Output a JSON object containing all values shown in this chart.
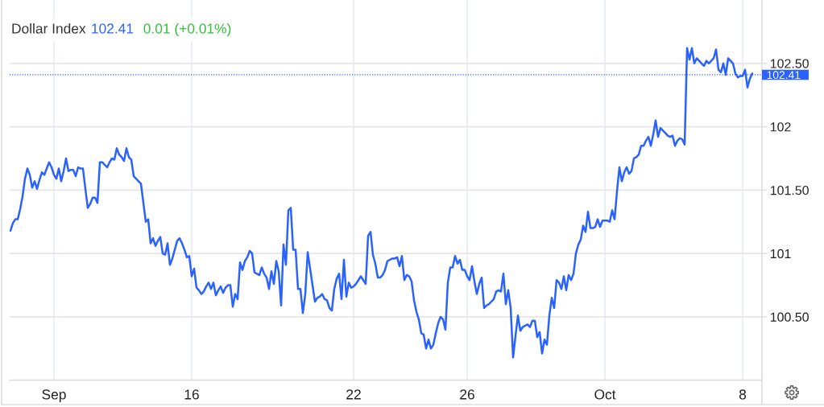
{
  "chart_data": {
    "type": "line",
    "title": "Dollar Index",
    "annotations": [
      "102.41",
      "0.01 (+0.01%)"
    ],
    "categories": [
      null,
      null,
      null,
      null,
      null,
      null,
      null,
      null,
      null,
      null,
      null,
      null,
      null,
      null,
      null,
      null,
      null,
      null,
      "Sep",
      null,
      null,
      null,
      null,
      null,
      null,
      null,
      null,
      null,
      null,
      null,
      null,
      null,
      null,
      null,
      null,
      null,
      null,
      null,
      null,
      null,
      null,
      null,
      null,
      null,
      null,
      null,
      null,
      null,
      null,
      null,
      null,
      null,
      null,
      null,
      null,
      null,
      null,
      null,
      null,
      null,
      null,
      null,
      null,
      null,
      null,
      null,
      null,
      null,
      null,
      null,
      null,
      null,
      null,
      null,
      null,
      "16",
      null,
      null,
      null,
      null,
      null,
      null,
      null,
      null,
      null,
      null,
      null,
      null,
      null,
      null,
      null,
      null,
      null,
      null,
      null,
      null,
      null,
      null,
      null,
      null,
      null,
      null,
      null,
      null,
      null,
      null,
      null,
      null,
      null,
      null,
      null,
      null,
      null,
      null,
      null,
      null,
      null,
      null,
      null,
      null,
      null,
      null,
      null,
      null,
      null,
      null,
      null,
      null,
      null,
      null,
      null,
      null,
      null,
      null,
      null,
      null,
      null,
      null,
      null,
      null,
      null,
      null,
      "22",
      null,
      null,
      null,
      null,
      null,
      null,
      null,
      null,
      null,
      null,
      null,
      null,
      null,
      null,
      null,
      null,
      null,
      null,
      null,
      null,
      null,
      null,
      null,
      null,
      null,
      null,
      null,
      null,
      null,
      null,
      null,
      null,
      null,
      null,
      null,
      null,
      null,
      null,
      null,
      null,
      null,
      null,
      null,
      null,
      null,
      null,
      "26",
      null,
      null,
      null,
      null,
      null,
      null,
      null,
      null,
      null,
      null,
      null,
      null,
      null,
      null,
      null,
      null,
      null,
      null,
      null,
      null,
      null,
      null,
      null,
      null,
      null,
      null,
      null,
      null,
      null,
      null,
      null,
      null,
      null,
      null,
      null,
      null,
      null,
      null,
      null,
      null,
      null,
      null,
      null,
      null,
      null,
      null,
      null,
      null,
      null,
      null,
      null,
      null,
      null,
      null,
      null,
      null,
      "Oct",
      null,
      null,
      null,
      null,
      null,
      null,
      null,
      null,
      null,
      null,
      null,
      null,
      null,
      null,
      null,
      null,
      null,
      null,
      null,
      null,
      null,
      null,
      null,
      null,
      null,
      null,
      null,
      null,
      null,
      null,
      null,
      null,
      null,
      null,
      null,
      null,
      null,
      null,
      null,
      null,
      null,
      null,
      null,
      null,
      null,
      null,
      null,
      null,
      null,
      null,
      null,
      null,
      null,
      null,
      null,
      null,
      "8",
      null,
      null,
      null,
      null
    ],
    "series": [
      {
        "color": "#2962ff",
        "values": [
          101.18,
          101.24,
          101.27,
          101.27,
          101.35,
          101.45,
          101.59,
          101.67,
          101.62,
          101.52,
          101.57,
          101.51,
          101.58,
          101.64,
          101.62,
          101.67,
          101.72,
          101.68,
          101.62,
          101.59,
          101.67,
          101.57,
          101.65,
          101.75,
          101.65,
          101.66,
          101.66,
          101.61,
          101.68,
          101.67,
          101.67,
          101.51,
          101.36,
          101.39,
          101.44,
          101.44,
          101.4,
          101.72,
          101.72,
          101.7,
          101.68,
          101.72,
          101.75,
          101.74,
          101.83,
          101.78,
          101.76,
          101.73,
          101.83,
          101.76,
          101.74,
          101.61,
          101.59,
          101.57,
          101.55,
          101.4,
          101.25,
          101.27,
          101.08,
          101.12,
          101.06,
          101.1,
          101.13,
          101.0,
          100.99,
          101.08,
          100.91,
          100.96,
          101.03,
          101.1,
          101.12,
          101.08,
          101.03,
          100.97,
          100.98,
          100.82,
          100.88,
          100.73,
          100.71,
          100.68,
          100.7,
          100.74,
          100.77,
          100.72,
          100.77,
          100.67,
          100.71,
          100.74,
          100.69,
          100.73,
          100.75,
          100.75,
          100.58,
          100.68,
          100.64,
          100.93,
          100.87,
          100.94,
          100.97,
          101.02,
          101.0,
          100.85,
          100.84,
          100.83,
          100.89,
          100.84,
          100.81,
          100.72,
          100.86,
          100.76,
          100.94,
          100.86,
          100.59,
          101.07,
          100.91,
          101.34,
          101.36,
          101.03,
          101.03,
          100.72,
          100.72,
          100.53,
          100.68,
          101.01,
          100.88,
          100.75,
          100.62,
          100.65,
          100.66,
          100.68,
          100.64,
          100.63,
          100.57,
          100.55,
          100.72,
          100.8,
          100.84,
          100.64,
          100.95,
          100.66,
          100.77,
          100.73,
          100.74,
          100.76,
          100.79,
          100.82,
          100.79,
          100.76,
          101.14,
          101.17,
          100.99,
          100.92,
          100.81,
          100.81,
          100.83,
          100.87,
          100.94,
          100.95,
          100.96,
          100.96,
          100.97,
          100.9,
          100.98,
          100.79,
          100.83,
          100.82,
          100.78,
          100.63,
          100.54,
          100.48,
          100.37,
          100.36,
          100.25,
          100.32,
          100.25,
          100.28,
          100.37,
          100.45,
          100.5,
          100.48,
          100.4,
          100.77,
          100.89,
          100.89,
          100.98,
          100.92,
          100.95,
          100.87,
          100.87,
          100.82,
          100.79,
          100.9,
          100.78,
          100.68,
          100.76,
          100.81,
          100.57,
          100.59,
          100.6,
          100.62,
          100.64,
          100.7,
          100.71,
          100.7,
          100.84,
          100.6,
          100.71,
          100.57,
          100.18,
          100.35,
          100.51,
          100.39,
          100.42,
          100.43,
          100.44,
          100.42,
          100.47,
          100.47,
          100.34,
          100.38,
          100.21,
          100.32,
          100.28,
          100.51,
          100.65,
          100.57,
          100.79,
          100.77,
          100.72,
          100.82,
          100.71,
          100.83,
          100.79,
          100.84,
          101.0,
          101.07,
          101.11,
          101.22,
          101.17,
          101.33,
          101.2,
          101.2,
          101.21,
          101.27,
          101.21,
          101.26,
          101.26,
          101.26,
          101.25,
          101.34,
          101.27,
          101.49,
          101.68,
          101.57,
          101.64,
          101.68,
          101.63,
          101.65,
          101.75,
          101.76,
          101.78,
          101.85,
          101.85,
          101.89,
          101.92,
          101.85,
          101.94,
          102.05,
          101.92,
          101.99,
          101.97,
          101.95,
          101.93,
          101.92,
          101.93,
          101.85,
          101.89,
          101.91,
          101.9,
          101.86,
          102.62,
          102.53,
          102.62,
          102.5,
          102.54,
          102.52,
          102.5,
          102.48,
          102.52,
          102.5,
          102.52,
          102.54,
          102.61,
          102.45,
          102.43,
          102.5,
          102.41,
          102.54,
          102.52,
          102.5,
          102.42,
          102.39,
          102.4,
          102.4,
          102.45,
          102.31,
          102.38,
          102.42
        ]
      }
    ],
    "ylim": [
      100,
      103
    ],
    "yticks": [
      {
        "value": 100.5,
        "label": "100.50"
      },
      101,
      {
        "value": 101.5,
        "label": "101.50"
      },
      102,
      {
        "value": 102.5,
        "label": "102.50"
      }
    ],
    "ref_lines": [
      {
        "axis": "y",
        "value": 102.41,
        "label": "102.41",
        "color": "#2962ff",
        "line_style": "dotted"
      }
    ],
    "grid": true
  }
}
